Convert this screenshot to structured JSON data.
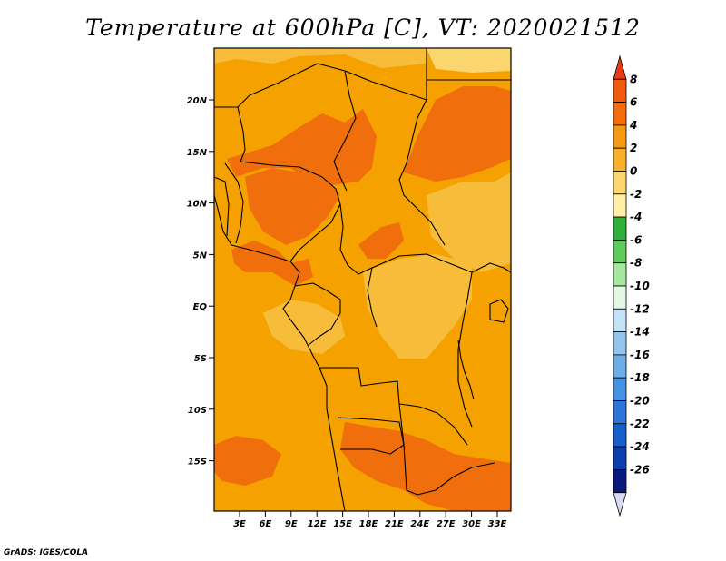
{
  "title": "Temperature at 600hPa [C], VT: 2020021512",
  "credit": "GrADS: IGES/COLA",
  "map": {
    "lat_ticks": [
      "20N",
      "15N",
      "10N",
      "5N",
      "EQ",
      "5S",
      "10S",
      "15S"
    ],
    "lon_ticks": [
      "3E",
      "6E",
      "9E",
      "12E",
      "15E",
      "18E",
      "21E",
      "24E",
      "27E",
      "30E",
      "33E"
    ],
    "base_color": "#f5a100",
    "warm_color": "#f06e0c",
    "cool_color": "#f7bd3a",
    "pale_color": "#fbd66e"
  },
  "colorbar": {
    "labels": [
      "8",
      "6",
      "4",
      "2",
      "0",
      "-2",
      "-4",
      "-6",
      "-8",
      "-10",
      "-12",
      "-14",
      "-16",
      "-18",
      "-20",
      "-22",
      "-24",
      "-26"
    ],
    "colors": [
      "#e53a12",
      "#f05a0c",
      "#f36d0b",
      "#f59a10",
      "#f7b02a",
      "#fbd66e",
      "#fff0a6",
      "#2fb03b",
      "#5fcb5b",
      "#a6e69f",
      "#e4f6e4",
      "#c5e3f6",
      "#93c6ee",
      "#6daee9",
      "#4591e3",
      "#2b74d9",
      "#165fcc",
      "#0b3fae",
      "#0a1a7a",
      "#d9d9f6"
    ]
  }
}
